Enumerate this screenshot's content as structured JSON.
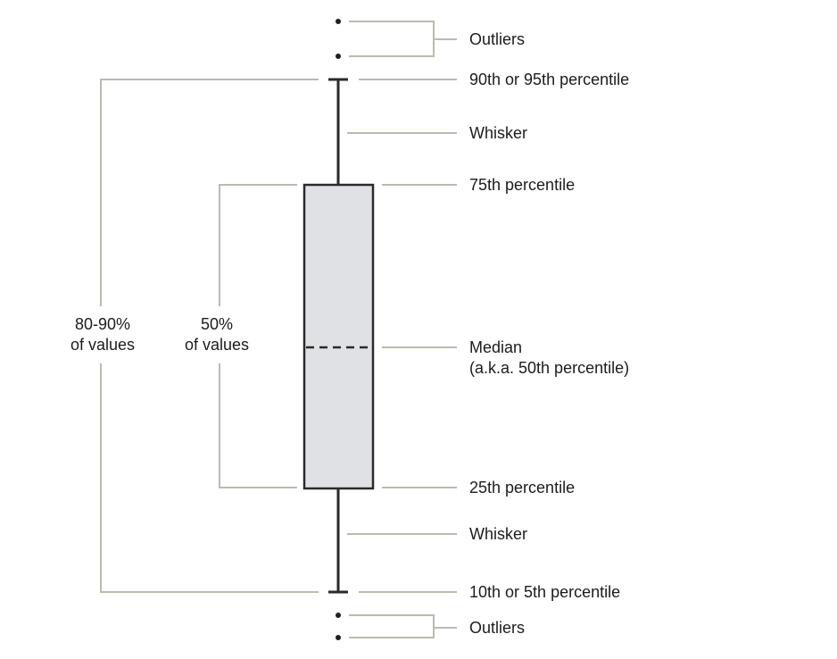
{
  "labels": {
    "outliers_top": "Outliers",
    "upper_percentile": "90th or 95th percentile",
    "whisker_top": "Whisker",
    "q3": "75th percentile",
    "median_line1": "Median",
    "median_line2": "(a.k.a. 50th percentile)",
    "q1": "25th percentile",
    "whisker_bottom": "Whisker",
    "lower_percentile": "10th or 5th percentile",
    "outliers_bottom": "Outliers",
    "range_outer_line1": "80-90%",
    "range_outer_line2": "of values",
    "range_inner_line1": "50%",
    "range_inner_line2": "of values"
  },
  "colors": {
    "box_fill": "#e0e1e5",
    "box_stroke": "#2a2a2a",
    "leader_line": "#b9bcae",
    "text": "#1c1c1c"
  }
}
